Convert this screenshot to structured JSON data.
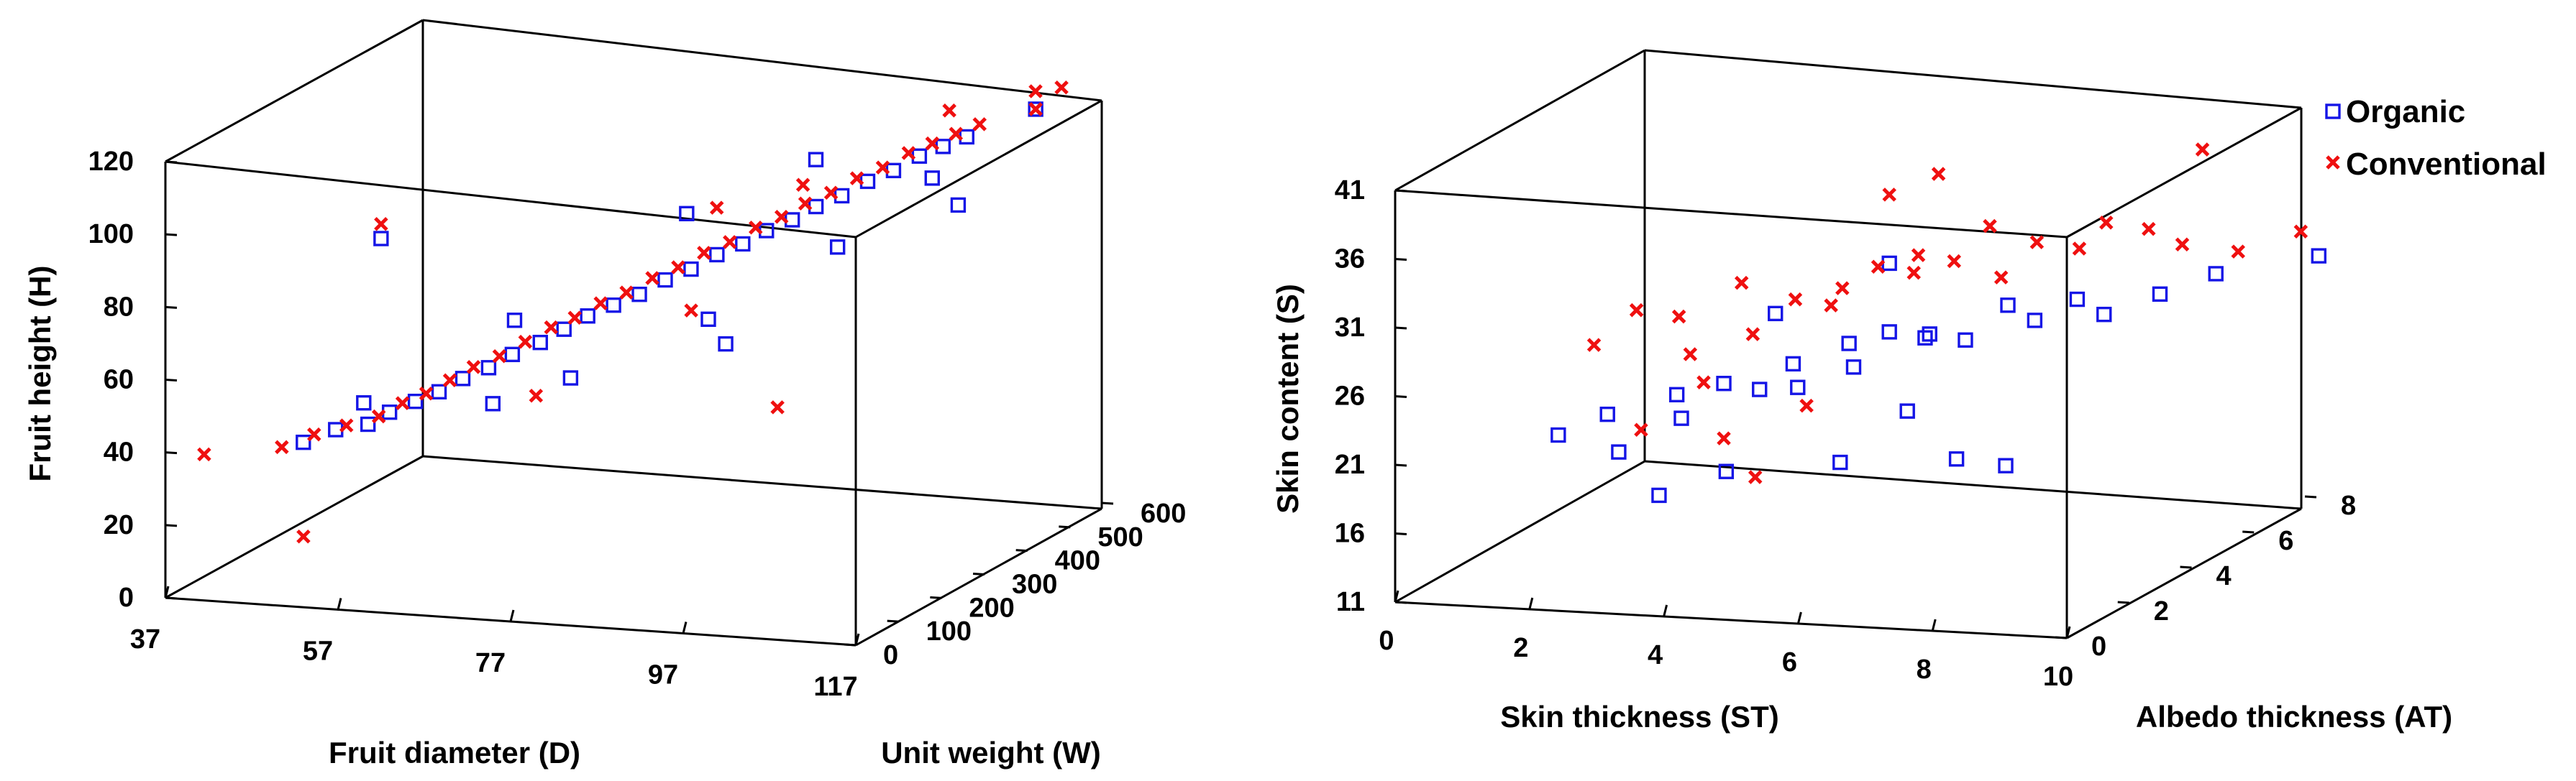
{
  "chart_data": [
    {
      "type": "scatter",
      "projection": "3d",
      "title": "",
      "xlabel": "Fruit diameter (D)",
      "ylabel": "Unit weight (W)",
      "zlabel": "Fruit height (H)",
      "xlim": [
        37,
        117
      ],
      "ylim": [
        0,
        600
      ],
      "zlim": [
        0,
        120
      ],
      "xticks": [
        "37",
        "57",
        "77",
        "97",
        "117"
      ],
      "yticks": [
        "0",
        "100",
        "200",
        "300",
        "400",
        "500",
        "600"
      ],
      "zticks": [
        "0",
        "20",
        "40",
        "60",
        "80",
        "100",
        "120"
      ],
      "series": [
        {
          "name": "Organic",
          "marker": "square",
          "color": "#1515e6",
          "points": [
            [
              50,
              60,
              41
            ],
            [
              53,
              75,
              44
            ],
            [
              56,
              90,
              45
            ],
            [
              58,
              100,
              48
            ],
            [
              60,
              120,
              50
            ],
            [
              62,
              135,
              52
            ],
            [
              64,
              150,
              55
            ],
            [
              66,
              170,
              57
            ],
            [
              68,
              185,
              60
            ],
            [
              70,
              210,
              62
            ],
            [
              72,
              225,
              65
            ],
            [
              74,
              240,
              68
            ],
            [
              76,
              260,
              70
            ],
            [
              78,
              280,
              72
            ],
            [
              80,
              300,
              75
            ],
            [
              82,
              320,
              77
            ],
            [
              84,
              340,
              80
            ],
            [
              86,
              360,
              82
            ],
            [
              88,
              375,
              85
            ],
            [
              90,
              395,
              87
            ],
            [
              92,
              410,
              90
            ],
            [
              94,
              430,
              92
            ],
            [
              96,
              450,
              95
            ],
            [
              98,
              470,
              97
            ],
            [
              100,
              490,
              100
            ],
            [
              102,
              505,
              102
            ],
            [
              104,
              520,
              104
            ],
            [
              60,
              40,
              100
            ],
            [
              75,
              180,
              55
            ],
            [
              85,
              300,
              65
            ],
            [
              95,
              400,
              80
            ],
            [
              80,
              350,
              90
            ],
            [
              70,
              150,
              72
            ],
            [
              90,
              450,
              100
            ],
            [
              110,
              560,
              110
            ],
            [
              57,
              60,
              53
            ],
            [
              100,
              520,
              92
            ],
            [
              88,
              280,
              60
            ],
            [
              65,
              200,
              45
            ],
            [
              105,
              480,
              88
            ]
          ]
        },
        {
          "name": "Conventional",
          "marker": "x",
          "color": "#ef1010",
          "points": [
            [
              48,
              50,
              40
            ],
            [
              51,
              65,
              43
            ],
            [
              54,
              80,
              45
            ],
            [
              57,
              95,
              47
            ],
            [
              59,
              110,
              50
            ],
            [
              61,
              125,
              52
            ],
            [
              63,
              140,
              55
            ],
            [
              65,
              155,
              58
            ],
            [
              67,
              175,
              60
            ],
            [
              69,
              195,
              63
            ],
            [
              71,
              215,
              66
            ],
            [
              73,
              230,
              68
            ],
            [
              75,
              250,
              71
            ],
            [
              77,
              270,
              73
            ],
            [
              79,
              290,
              76
            ],
            [
              81,
              310,
              78
            ],
            [
              83,
              330,
              81
            ],
            [
              85,
              350,
              83
            ],
            [
              87,
              370,
              86
            ],
            [
              89,
              390,
              88
            ],
            [
              91,
              405,
              91
            ],
            [
              93,
              425,
              93
            ],
            [
              95,
              445,
              96
            ],
            [
              97,
              465,
              98
            ],
            [
              99,
              485,
              101
            ],
            [
              101,
              500,
              103
            ],
            [
              103,
              515,
              105
            ],
            [
              105,
              530,
              107
            ],
            [
              110,
              560,
              110
            ],
            [
              112,
              580,
              115
            ],
            [
              60,
              40,
              104
            ],
            [
              52,
              20,
              18
            ],
            [
              95,
              260,
              45
            ],
            [
              40,
              30,
              38
            ],
            [
              108,
              600,
              112
            ],
            [
              70,
              200,
              48
            ],
            [
              85,
              260,
              70
            ],
            [
              90,
              420,
              95
            ],
            [
              100,
              560,
              108
            ],
            [
              82,
              380,
              90
            ]
          ]
        }
      ]
    },
    {
      "type": "scatter",
      "projection": "3d",
      "title": "",
      "xlabel": "Skin thickness (ST)",
      "ylabel": "Albedo thickness (AT)",
      "zlabel": "Skin content (S)",
      "xlim": [
        0,
        10
      ],
      "ylim": [
        0,
        8
      ],
      "zlim": [
        11,
        41
      ],
      "xticks": [
        "0",
        "2",
        "4",
        "6",
        "8",
        "10"
      ],
      "yticks": [
        "0",
        "2",
        "4",
        "6",
        "8"
      ],
      "zticks": [
        "11",
        "16",
        "21",
        "26",
        "31",
        "36",
        "41"
      ],
      "legend": {
        "position": "top-right",
        "entries": [
          "Organic",
          "Conventional"
        ]
      },
      "series": [
        {
          "name": "Organic",
          "marker": "square",
          "color": "#1515e6",
          "points": [
            [
              1.5,
              2.0,
              21
            ],
            [
              2.0,
              2.5,
              22
            ],
            [
              2.4,
              2.0,
              20
            ],
            [
              2.8,
              3.0,
              23
            ],
            [
              3.1,
              2.5,
              22
            ],
            [
              3.5,
              3.0,
              24
            ],
            [
              3.8,
              3.5,
              23
            ],
            [
              4.0,
              2.0,
              19
            ],
            [
              4.3,
              3.5,
              25
            ],
            [
              4.6,
              3.0,
              24
            ],
            [
              4.9,
              4.0,
              26
            ],
            [
              5.2,
              3.5,
              25
            ],
            [
              5.5,
              4.0,
              27
            ],
            [
              5.8,
              4.5,
              26
            ],
            [
              6.1,
              4.0,
              27
            ],
            [
              6.4,
              4.5,
              26
            ],
            [
              6.8,
              5.0,
              28
            ],
            [
              7.2,
              5.0,
              27
            ],
            [
              7.6,
              5.5,
              28
            ],
            [
              8.0,
              5.5,
              27
            ],
            [
              8.6,
              6.0,
              28
            ],
            [
              9.2,
              6.5,
              29
            ],
            [
              10.5,
              7.0,
              30
            ],
            [
              5.0,
              3.5,
              18
            ],
            [
              6.5,
              4.0,
              18
            ],
            [
              7.0,
              4.5,
              17
            ],
            [
              3.0,
              2.0,
              17
            ],
            [
              4.5,
              2.5,
              30
            ],
            [
              5.5,
              4.0,
              32
            ],
            [
              6.0,
              3.5,
              22
            ]
          ]
        },
        {
          "name": "Conventional",
          "marker": "x",
          "color": "#ef1010",
          "points": [
            [
              1.8,
              2.5,
              27
            ],
            [
              2.2,
              3.0,
              29
            ],
            [
              2.6,
              3.5,
              28
            ],
            [
              3.0,
              3.0,
              26
            ],
            [
              3.3,
              4.0,
              30
            ],
            [
              3.7,
              3.5,
              27
            ],
            [
              4.1,
              4.0,
              29
            ],
            [
              4.4,
              4.5,
              28
            ],
            [
              4.8,
              4.0,
              30
            ],
            [
              5.1,
              4.5,
              31
            ],
            [
              5.4,
              5.0,
              30
            ],
            [
              5.7,
              4.5,
              32
            ],
            [
              6.0,
              5.0,
              31
            ],
            [
              6.3,
              5.5,
              33
            ],
            [
              6.7,
              5.0,
              30
            ],
            [
              7.0,
              5.5,
              32
            ],
            [
              7.4,
              6.0,
              31
            ],
            [
              7.8,
              6.0,
              33
            ],
            [
              8.2,
              6.5,
              32
            ],
            [
              8.7,
              6.5,
              31
            ],
            [
              9.3,
              7.0,
              30
            ],
            [
              10.0,
              7.5,
              31
            ],
            [
              5.5,
              4.0,
              37
            ],
            [
              6.0,
              4.5,
              38
            ],
            [
              9.0,
              6.5,
              38
            ],
            [
              2.5,
              2.5,
              21
            ],
            [
              3.5,
              3.0,
              20
            ],
            [
              4.5,
              3.5,
              22
            ],
            [
              4.2,
              2.5,
              18
            ],
            [
              3.2,
              3.0,
              24
            ]
          ]
        }
      ]
    }
  ]
}
